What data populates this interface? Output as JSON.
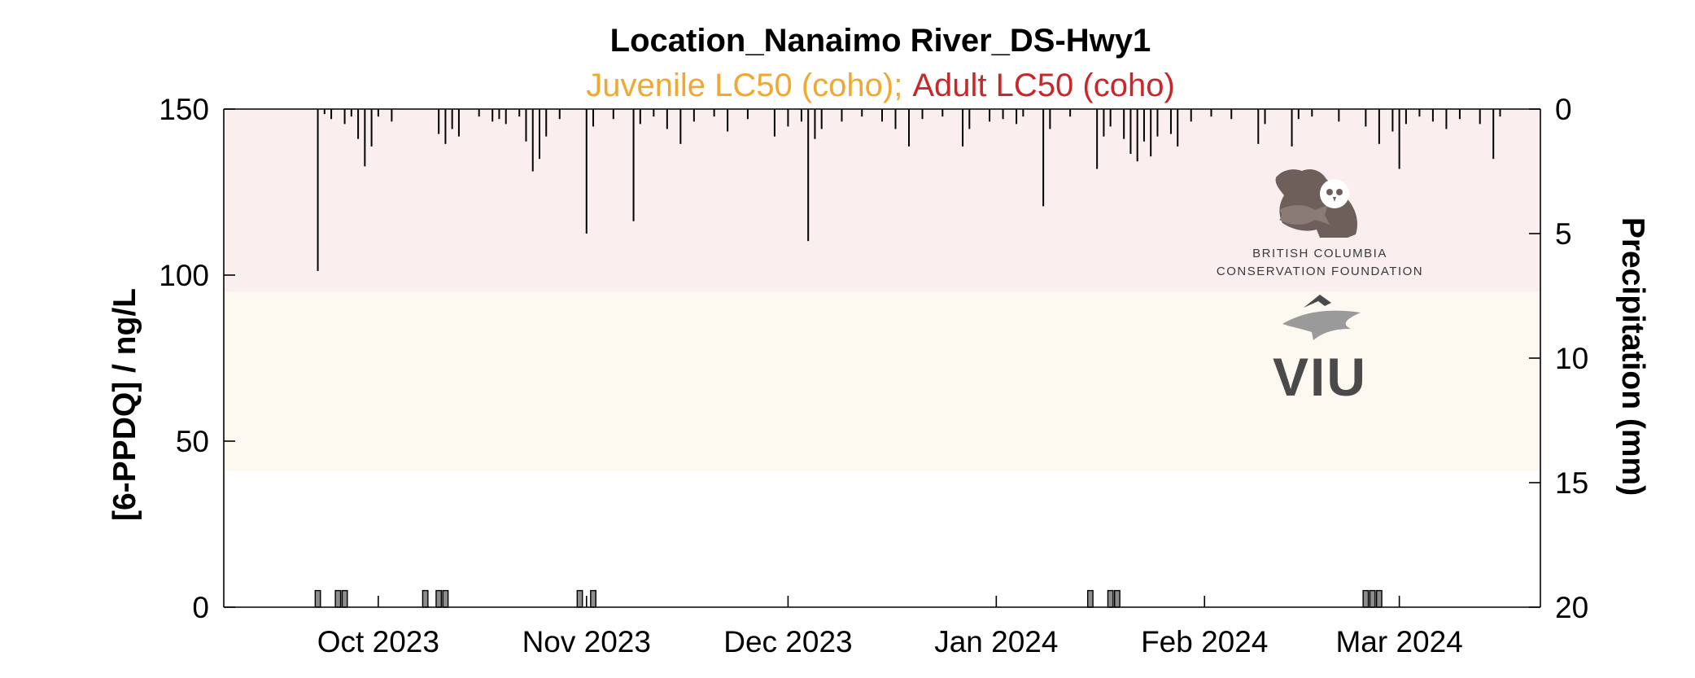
{
  "chart_data": {
    "type": "line",
    "title": "Location_Nanaimo River_DS-Hwy1",
    "subtitle": {
      "juvenile": "Juvenile LC50 (coho)",
      "separator": ";",
      "adult": "Adult LC50 (coho)"
    },
    "ylabel_left": "[6-PPDQ] / ng/L",
    "ylabel_right": "Precipitation (mm)",
    "ylim_left": [
      0,
      150
    ],
    "ylim_right": [
      0,
      20
    ],
    "right_axis_reversed": true,
    "y_ticks_left": [
      "0",
      "50",
      "100",
      "150"
    ],
    "y_ticks_right": [
      "0",
      "5",
      "10",
      "15",
      "20"
    ],
    "xlim": [
      "2023-09-08",
      "2024-03-22"
    ],
    "x_ticks": [
      {
        "date": "2023-10-01",
        "label": "Oct 2023"
      },
      {
        "date": "2023-11-01",
        "label": "Nov 2023"
      },
      {
        "date": "2023-12-01",
        "label": "Dec 2023"
      },
      {
        "date": "2024-01-01",
        "label": "Jan 2024"
      },
      {
        "date": "2024-02-01",
        "label": "Feb 2024"
      },
      {
        "date": "2024-03-01",
        "label": "Mar 2024"
      }
    ],
    "thresholds": [
      {
        "name": "Juvenile LC50 (coho)",
        "from": 41,
        "to": 95,
        "color": "#fdf8f0"
      },
      {
        "name": "Adult LC50 (coho)",
        "from": 95,
        "to": 150,
        "color": "#faeeee"
      }
    ],
    "sample_bars": {
      "color": "#8c8c8c",
      "height": 5,
      "dates": [
        "2023-09-22",
        "2023-09-25",
        "2023-09-26",
        "2023-10-08",
        "2023-10-10",
        "2023-10-11",
        "2023-10-31",
        "2023-11-02",
        "2024-01-15",
        "2024-01-18",
        "2024-01-19",
        "2024-02-25",
        "2024-02-26",
        "2024-02-27"
      ]
    },
    "precipitation": [
      {
        "date": "2023-09-22",
        "mm": 6.5
      },
      {
        "date": "2023-09-23",
        "mm": 0.2
      },
      {
        "date": "2023-09-24",
        "mm": 0.4
      },
      {
        "date": "2023-09-26",
        "mm": 0.6
      },
      {
        "date": "2023-09-27",
        "mm": 0.3
      },
      {
        "date": "2023-09-28",
        "mm": 1.2
      },
      {
        "date": "2023-09-29",
        "mm": 2.3
      },
      {
        "date": "2023-09-30",
        "mm": 1.5
      },
      {
        "date": "2023-10-01",
        "mm": 0.3
      },
      {
        "date": "2023-10-03",
        "mm": 0.5
      },
      {
        "date": "2023-10-10",
        "mm": 1.0
      },
      {
        "date": "2023-10-11",
        "mm": 1.4
      },
      {
        "date": "2023-10-12",
        "mm": 0.8
      },
      {
        "date": "2023-10-13",
        "mm": 1.1
      },
      {
        "date": "2023-10-16",
        "mm": 0.3
      },
      {
        "date": "2023-10-18",
        "mm": 0.5
      },
      {
        "date": "2023-10-19",
        "mm": 0.4
      },
      {
        "date": "2023-10-20",
        "mm": 0.6
      },
      {
        "date": "2023-10-22",
        "mm": 0.3
      },
      {
        "date": "2023-10-23",
        "mm": 1.3
      },
      {
        "date": "2023-10-24",
        "mm": 2.5
      },
      {
        "date": "2023-10-25",
        "mm": 2.0
      },
      {
        "date": "2023-10-26",
        "mm": 1.1
      },
      {
        "date": "2023-10-28",
        "mm": 0.4
      },
      {
        "date": "2023-11-01",
        "mm": 5.0
      },
      {
        "date": "2023-11-02",
        "mm": 0.7
      },
      {
        "date": "2023-11-05",
        "mm": 0.4
      },
      {
        "date": "2023-11-08",
        "mm": 4.5
      },
      {
        "date": "2023-11-09",
        "mm": 0.6
      },
      {
        "date": "2023-11-11",
        "mm": 0.3
      },
      {
        "date": "2023-11-13",
        "mm": 0.8
      },
      {
        "date": "2023-11-15",
        "mm": 1.4
      },
      {
        "date": "2023-11-17",
        "mm": 0.5
      },
      {
        "date": "2023-11-20",
        "mm": 0.3
      },
      {
        "date": "2023-11-22",
        "mm": 0.9
      },
      {
        "date": "2023-11-25",
        "mm": 0.4
      },
      {
        "date": "2023-11-29",
        "mm": 1.1
      },
      {
        "date": "2023-12-01",
        "mm": 0.7
      },
      {
        "date": "2023-12-03",
        "mm": 0.5
      },
      {
        "date": "2023-12-04",
        "mm": 5.3
      },
      {
        "date": "2023-12-05",
        "mm": 1.2
      },
      {
        "date": "2023-12-06",
        "mm": 0.8
      },
      {
        "date": "2023-12-09",
        "mm": 0.5
      },
      {
        "date": "2023-12-12",
        "mm": 0.3
      },
      {
        "date": "2023-12-15",
        "mm": 0.5
      },
      {
        "date": "2023-12-17",
        "mm": 0.8
      },
      {
        "date": "2023-12-19",
        "mm": 1.5
      },
      {
        "date": "2023-12-21",
        "mm": 0.4
      },
      {
        "date": "2023-12-24",
        "mm": 0.3
      },
      {
        "date": "2023-12-27",
        "mm": 1.5
      },
      {
        "date": "2023-12-28",
        "mm": 0.8
      },
      {
        "date": "2023-12-31",
        "mm": 0.5
      },
      {
        "date": "2024-01-02",
        "mm": 0.4
      },
      {
        "date": "2024-01-04",
        "mm": 0.6
      },
      {
        "date": "2024-01-05",
        "mm": 0.3
      },
      {
        "date": "2024-01-08",
        "mm": 3.9
      },
      {
        "date": "2024-01-09",
        "mm": 0.8
      },
      {
        "date": "2024-01-12",
        "mm": 0.3
      },
      {
        "date": "2024-01-16",
        "mm": 2.4
      },
      {
        "date": "2024-01-17",
        "mm": 1.1
      },
      {
        "date": "2024-01-18",
        "mm": 0.7
      },
      {
        "date": "2024-01-20",
        "mm": 1.2
      },
      {
        "date": "2024-01-21",
        "mm": 1.8
      },
      {
        "date": "2024-01-22",
        "mm": 2.1
      },
      {
        "date": "2024-01-23",
        "mm": 1.3
      },
      {
        "date": "2024-01-24",
        "mm": 1.9
      },
      {
        "date": "2024-01-25",
        "mm": 1.1
      },
      {
        "date": "2024-01-27",
        "mm": 1.0
      },
      {
        "date": "2024-01-28",
        "mm": 1.5
      },
      {
        "date": "2024-01-30",
        "mm": 0.5
      },
      {
        "date": "2024-02-02",
        "mm": 0.3
      },
      {
        "date": "2024-02-05",
        "mm": 0.4
      },
      {
        "date": "2024-02-09",
        "mm": 1.4
      },
      {
        "date": "2024-02-10",
        "mm": 0.6
      },
      {
        "date": "2024-02-14",
        "mm": 1.5
      },
      {
        "date": "2024-02-15",
        "mm": 0.4
      },
      {
        "date": "2024-02-17",
        "mm": 0.3
      },
      {
        "date": "2024-02-21",
        "mm": 0.5
      },
      {
        "date": "2024-02-25",
        "mm": 0.7
      },
      {
        "date": "2024-02-27",
        "mm": 1.4
      },
      {
        "date": "2024-02-29",
        "mm": 0.9
      },
      {
        "date": "2024-03-01",
        "mm": 2.4
      },
      {
        "date": "2024-03-02",
        "mm": 0.6
      },
      {
        "date": "2024-03-04",
        "mm": 0.3
      },
      {
        "date": "2024-03-06",
        "mm": 0.5
      },
      {
        "date": "2024-03-08",
        "mm": 0.8
      },
      {
        "date": "2024-03-10",
        "mm": 0.4
      },
      {
        "date": "2024-03-13",
        "mm": 0.6
      },
      {
        "date": "2024-03-15",
        "mm": 2.0
      },
      {
        "date": "2024-03-16",
        "mm": 0.3
      }
    ]
  },
  "logos": {
    "bccf_line1": "BRITISH COLUMBIA",
    "bccf_line2": "CONSERVATION FOUNDATION",
    "viu": "VIU",
    "colors": {
      "bccf": "#6e5f5b",
      "viu_mark": "#9a9a9a",
      "viu_text": "#4a4a4a"
    }
  }
}
